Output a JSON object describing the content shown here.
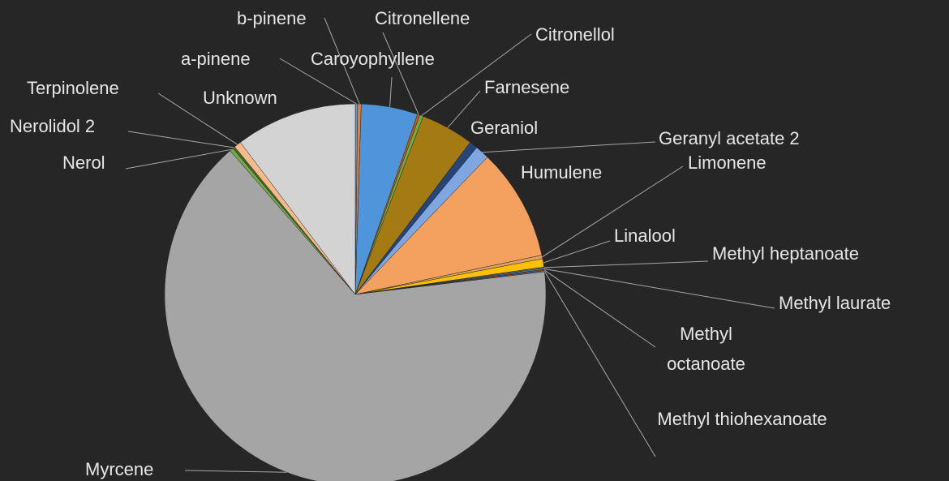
{
  "chart_data": {
    "type": "pie",
    "categories": [
      "a-pinene",
      "b-pinene",
      "Caroyophyllene",
      "Citronellene",
      "Citronellol",
      "Farnesene",
      "Geraniol",
      "Geranyl acetate 2",
      "Humulene",
      "Limonene",
      "Linalool",
      "Methyl heptanoate",
      "Methyl laurate",
      "Methyl octanoate",
      "Methyl thiohexanoate",
      "Myrcene",
      "Nerol",
      "Nerolidol 2",
      "Terpinolene",
      "Unknown"
    ],
    "values": [
      0.2,
      0.3,
      4.8,
      0.2,
      0.3,
      4.5,
      0.7,
      1.2,
      9.5,
      0.3,
      0.7,
      0.1,
      0.1,
      0.1,
      0.1,
      65.5,
      0.3,
      0.2,
      0.6,
      10.3
    ],
    "colors": [
      "#5b9bd5",
      "#ed7d31",
      "#4f95dc",
      "#c55a11",
      "#70ad47",
      "#a47a12",
      "#264478",
      "#7ea6e0",
      "#f4a15f",
      "#e0a060",
      "#ffc000",
      "#6f6f6f",
      "#5b9bd5",
      "#9e480e",
      "#4a7ab8",
      "#a5a5a5",
      "#70ad47",
      "#43682b",
      "#f8b98b",
      "#d3d3d3"
    ]
  }
}
